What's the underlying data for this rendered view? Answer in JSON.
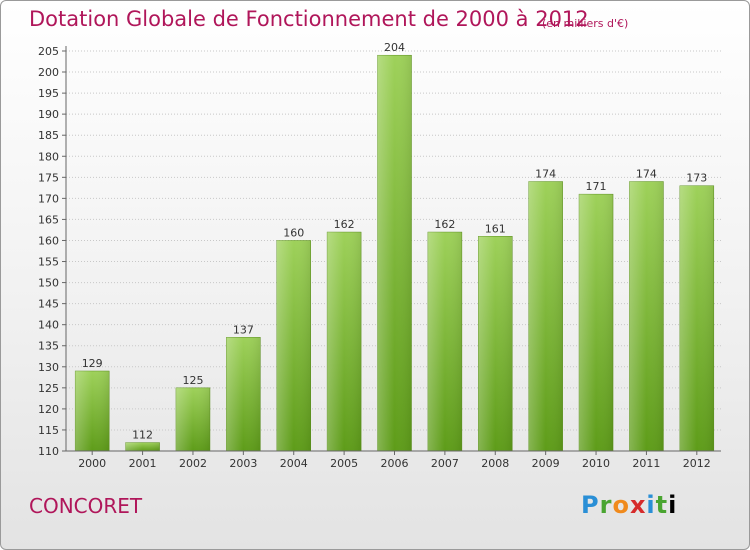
{
  "title": "Dotation Globale de Fonctionnement de 2000 à 2012",
  "subtitle": "(en milliers d'€)",
  "commune": "CONCORET",
  "logo": {
    "text": "Proxiti",
    "letters": [
      "P",
      "r",
      "o",
      "x",
      "i",
      "t",
      "i"
    ]
  },
  "colors": {
    "bar_top": "#9ed15a",
    "bar_bottom": "#5e9c19",
    "title": "#b0165a",
    "grid": "#c8c8c8"
  },
  "chart_data": {
    "type": "bar",
    "title": "Dotation Globale de Fonctionnement de 2000 à 2012",
    "subtitle": "(en milliers d'€)",
    "categories": [
      "2000",
      "2001",
      "2002",
      "2003",
      "2004",
      "2005",
      "2006",
      "2007",
      "2008",
      "2009",
      "2010",
      "2011",
      "2012"
    ],
    "values": [
      129,
      112,
      125,
      137,
      160,
      162,
      204,
      162,
      161,
      174,
      171,
      174,
      173
    ],
    "ylim": [
      110,
      205
    ],
    "yticks": [
      110,
      115,
      120,
      125,
      130,
      135,
      140,
      145,
      150,
      155,
      160,
      165,
      170,
      175,
      180,
      185,
      190,
      195,
      200,
      205
    ],
    "grid": true,
    "xlabel": "",
    "ylabel": ""
  }
}
